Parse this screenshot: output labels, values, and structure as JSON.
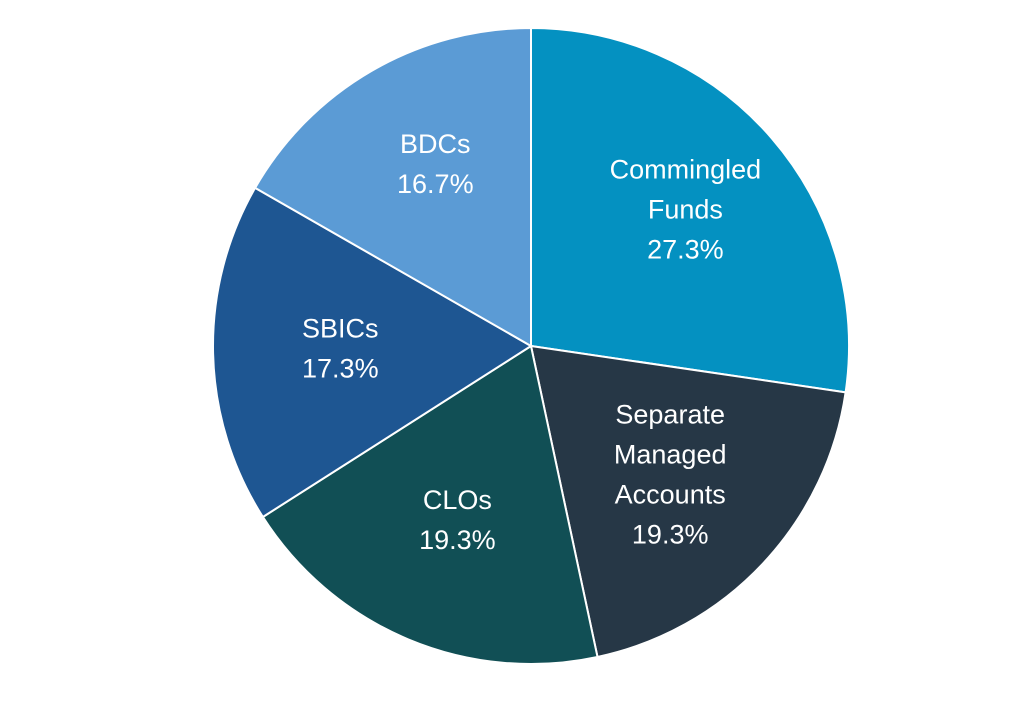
{
  "chart_data": {
    "type": "pie",
    "title": "",
    "start_angle_deg": 0,
    "direction": "clockwise",
    "slices": [
      {
        "label_lines": [
          "Commingled",
          "Funds"
        ],
        "value_label": "27.3%",
        "value": 27.3,
        "color": "#0491C1"
      },
      {
        "label_lines": [
          "Separate",
          "Managed",
          "Accounts"
        ],
        "value_label": "19.3%",
        "value": 19.3,
        "color": "#263746"
      },
      {
        "label_lines": [
          "CLOs"
        ],
        "value_label": "19.3%",
        "value": 19.3,
        "color": "#114F55"
      },
      {
        "label_lines": [
          "SBICs"
        ],
        "value_label": "17.3%",
        "value": 17.3,
        "color": "#1E5692"
      },
      {
        "label_lines": [
          "BDCs"
        ],
        "value_label": "16.7%",
        "value": 16.7,
        "color": "#5B9BD5"
      }
    ]
  }
}
